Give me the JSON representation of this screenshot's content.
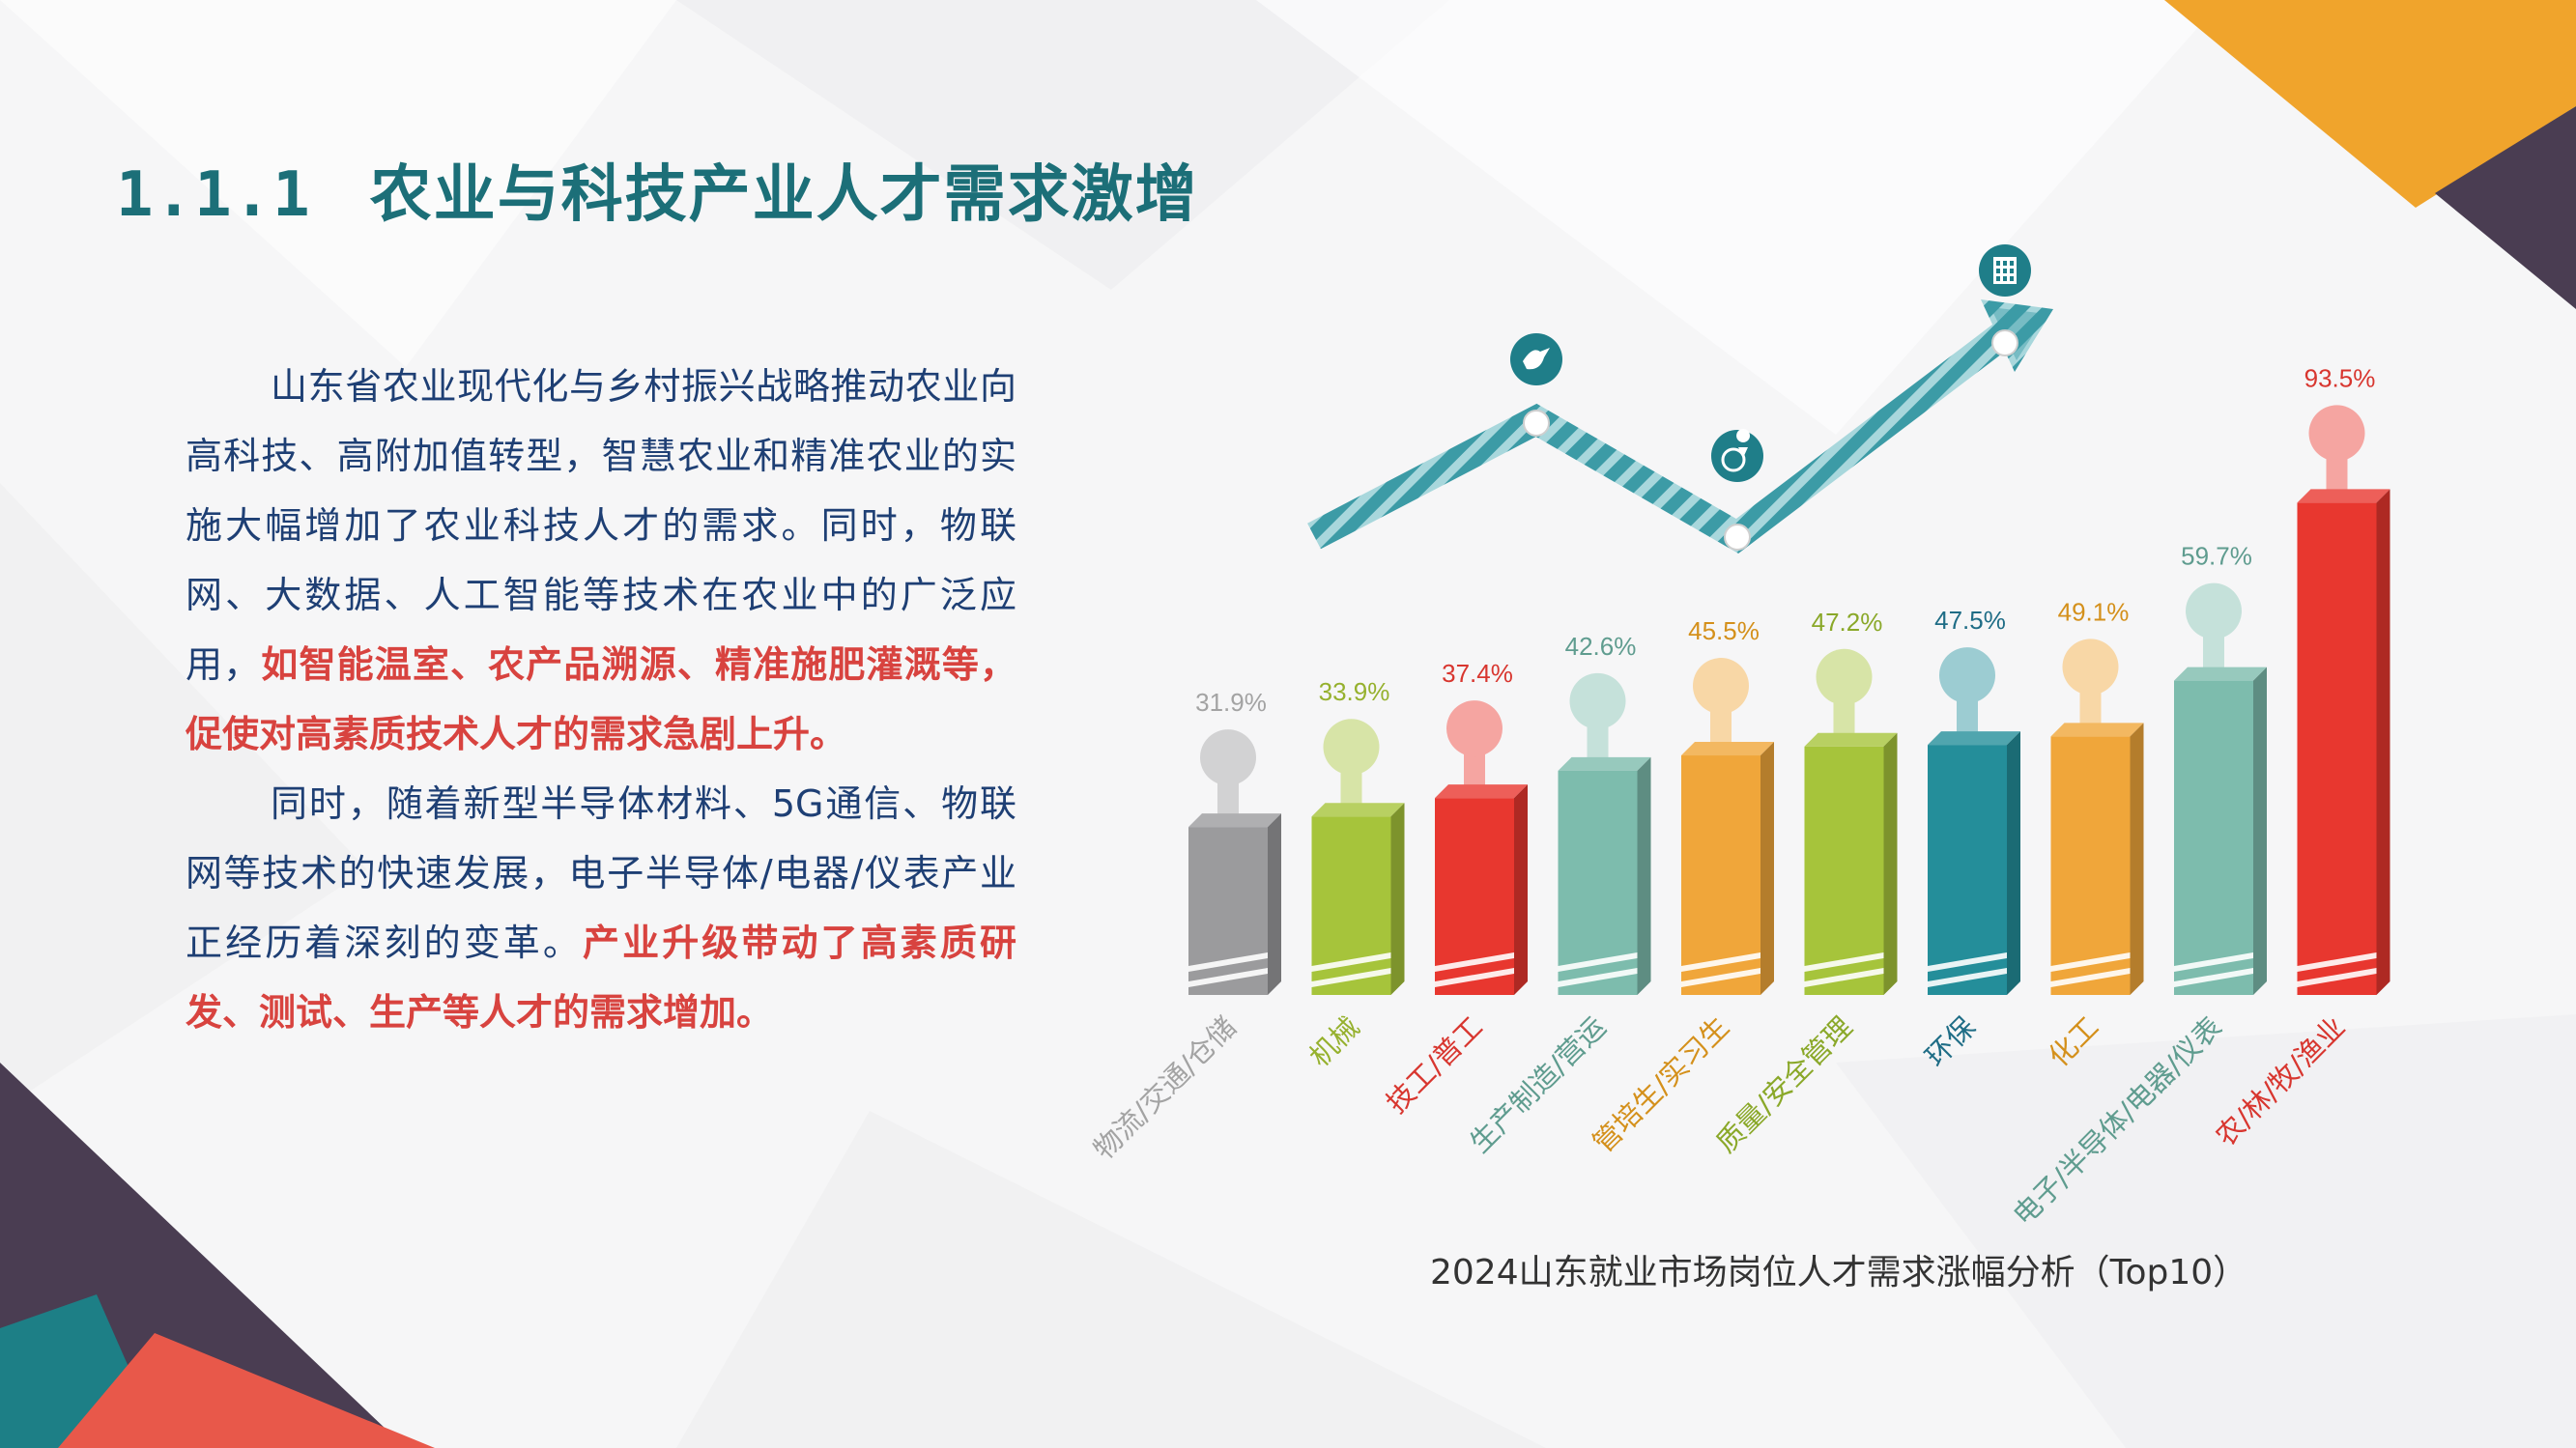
{
  "title": {
    "number": "1.1.1",
    "text": "农业与科技产业人才需求激增"
  },
  "body": {
    "p1_a": "山东省农业现代化与乡村振兴战略推动农业向高科技、高附加值转型，智慧农业和精准农业的实施大幅增加了农业科技人才的需求。同时，物联网、大数据、人工智能等技术在农业中的广泛应用，",
    "p1_b": "如智能温室、农产品溯源、精准施肥灌溉等，促使对高素质技术人才的需求急剧上升。",
    "p2_a": "同时，随着新型半导体材料、5G通信、物联网等技术的快速发展，电子半导体/电器/仪表产业正经历着深刻的变革。",
    "p2_b": "产业升级带动了高素质研发、测试、生产等人才的需求增加。"
  },
  "chart_data": {
    "type": "bar",
    "title": "2024山东就业市场岗位人才需求涨幅分析（Top10）",
    "categories": [
      "物流/交通/仓储",
      "机械",
      "技工/普工",
      "生产制造/营运",
      "管培生/实习生",
      "质量/安全管理",
      "环保",
      "化工",
      "电子/半导体/电器/仪表",
      "农/林/牧/渔业"
    ],
    "labels": [
      "31.9%",
      "33.9%",
      "37.4%",
      "42.6%",
      "45.5%",
      "47.2%",
      "47.5%",
      "49.1%",
      "59.7%",
      "93.5%"
    ],
    "values": [
      31.9,
      33.9,
      37.4,
      42.6,
      45.5,
      47.2,
      47.5,
      49.1,
      59.7,
      93.5
    ],
    "unit": "%",
    "colors": [
      "#9b9b9d",
      "#a6c43b",
      "#e8372f",
      "#7dbcad",
      "#f0a63a",
      "#a6c43b",
      "#248e9a",
      "#f0a63a",
      "#7dbcad",
      "#e8372f"
    ],
    "label_colors": [
      "#a3a3a3",
      "#96b12e",
      "#d8362f",
      "#5f9c8f",
      "#d4901b",
      "#8aa829",
      "#1f6d86",
      "#d4901b",
      "#5f9c8f",
      "#d8362f"
    ]
  },
  "decor": {
    "arrow_color": "#3c9ba6",
    "icons": [
      "bird-icon",
      "globe-pin-icon",
      "building-icon"
    ]
  }
}
